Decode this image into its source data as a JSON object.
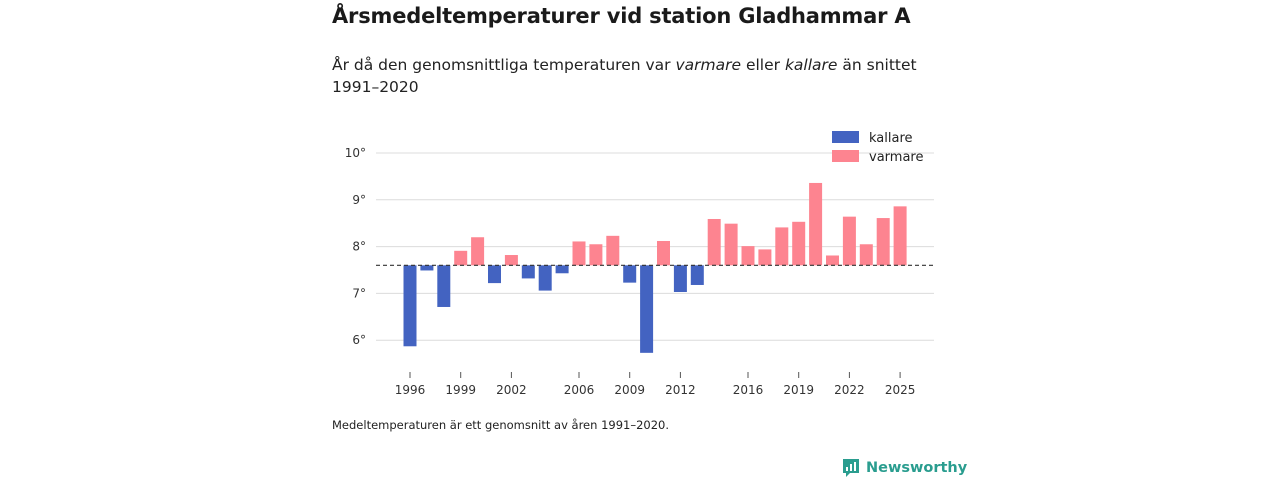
{
  "header": {
    "title": "Årsmedeltemperaturer vid station Gladhammar A",
    "subtitle_pre": "År då den genomsnittliga temperaturen var ",
    "subtitle_warm": "varmare",
    "subtitle_mid": " eller ",
    "subtitle_cold": "kallare",
    "subtitle_post": " än snittet 1991–2020"
  },
  "note": "Medeltemperaturen är ett genomsnitt av åren 1991–2020.",
  "brand": {
    "name": "Newsworthy",
    "icon": "newsworthy-logo-icon",
    "color": "#2a9d8f"
  },
  "colors": {
    "kallare": "#4363c1",
    "varmare": "#fd8490"
  },
  "chart_data": {
    "type": "bar",
    "title": "Årsmedeltemperaturer vid station Gladhammar A",
    "xlabel": "",
    "ylabel": "",
    "baseline": 7.6,
    "ylim": [
      5.6,
      10.6
    ],
    "yticks": [
      6,
      7,
      8,
      9,
      10
    ],
    "ytick_labels": [
      "6°",
      "7°",
      "8°",
      "9°",
      "10°"
    ],
    "xticks": [
      1996,
      1999,
      2002,
      2006,
      2009,
      2012,
      2016,
      2019,
      2022,
      2025
    ],
    "legend": [
      {
        "key": "kallare",
        "label": "kallare"
      },
      {
        "key": "varmare",
        "label": "varmare"
      }
    ],
    "legend_position": "top-right",
    "categories": [
      1996,
      1997,
      1998,
      1999,
      2000,
      2001,
      2002,
      2003,
      2004,
      2005,
      2006,
      2007,
      2008,
      2009,
      2010,
      2011,
      2012,
      2013,
      2014,
      2015,
      2016,
      2017,
      2018,
      2019,
      2020,
      2021,
      2022,
      2023,
      2024,
      2025
    ],
    "values": [
      5.87,
      7.49,
      6.71,
      7.91,
      8.2,
      7.22,
      7.82,
      7.32,
      7.06,
      7.43,
      8.11,
      8.05,
      8.23,
      7.23,
      5.73,
      8.12,
      7.03,
      7.18,
      8.59,
      8.49,
      8.01,
      7.94,
      8.41,
      8.53,
      9.36,
      7.81,
      8.64,
      8.05,
      8.61,
      8.86
    ]
  }
}
